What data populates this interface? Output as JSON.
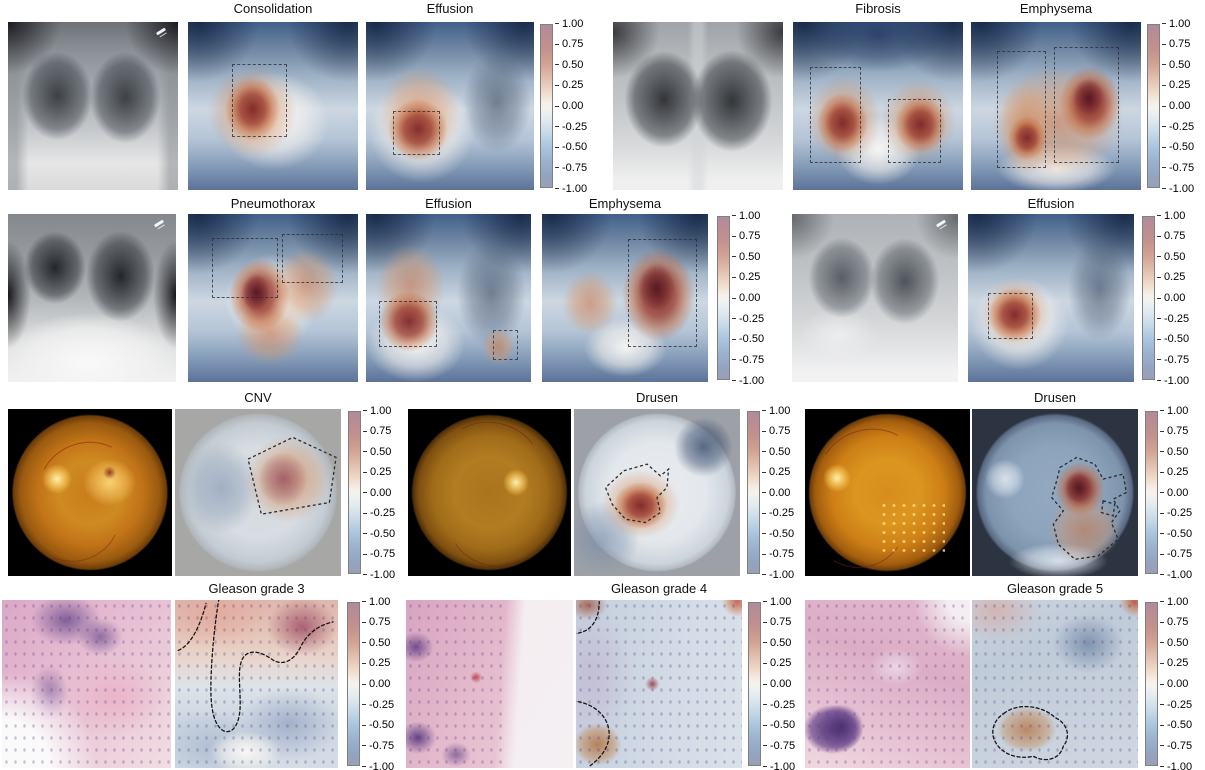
{
  "figure": {
    "rows": [
      {
        "titles": [
          "Consolidation",
          "Effusion",
          "Fibrosis",
          "Emphysema"
        ]
      },
      {
        "titles": [
          "Pneumothorax",
          "Effusion",
          "Emphysema",
          "Effusion"
        ]
      },
      {
        "titles": [
          "CNV",
          "Drusen",
          "Drusen"
        ]
      },
      {
        "titles": [
          "Gleason grade 3",
          "Gleason grade 4",
          "Gleason grade 5"
        ]
      }
    ],
    "colorbar": {
      "ticks": [
        "1.00",
        "0.75",
        "0.50",
        "0.25",
        "0.00",
        "-0.25",
        "-0.50",
        "-0.75",
        "-1.00"
      ],
      "max_color": "#b58e98",
      "mid_color": "#f7f3ee",
      "min_color": "#93a2bc"
    }
  }
}
